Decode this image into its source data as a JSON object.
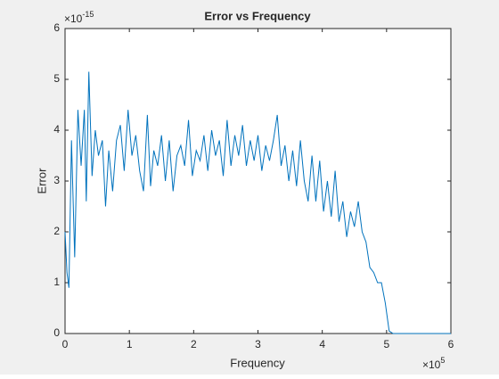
{
  "chart_data": {
    "type": "line",
    "title": "Error vs Frequency",
    "xlabel": "Frequency",
    "ylabel": "Error",
    "x_multiplier": {
      "base": "×10",
      "exponent": "5"
    },
    "y_multiplier": {
      "base": "×10",
      "exponent": "-15"
    },
    "x": [
      0,
      0.03,
      0.06,
      0.1,
      0.15,
      0.2,
      0.25,
      0.3,
      0.33,
      0.37,
      0.42,
      0.47,
      0.52,
      0.58,
      0.63,
      0.68,
      0.74,
      0.8,
      0.86,
      0.92,
      0.98,
      1.04,
      1.1,
      1.16,
      1.22,
      1.28,
      1.33,
      1.38,
      1.44,
      1.5,
      1.56,
      1.62,
      1.68,
      1.74,
      1.8,
      1.86,
      1.92,
      1.98,
      2.04,
      2.1,
      2.16,
      2.22,
      2.28,
      2.34,
      2.4,
      2.46,
      2.52,
      2.58,
      2.64,
      2.7,
      2.76,
      2.82,
      2.88,
      2.94,
      3.0,
      3.06,
      3.12,
      3.18,
      3.24,
      3.3,
      3.36,
      3.42,
      3.48,
      3.54,
      3.6,
      3.66,
      3.72,
      3.78,
      3.84,
      3.9,
      3.96,
      4.02,
      4.08,
      4.14,
      4.2,
      4.26,
      4.32,
      4.38,
      4.44,
      4.5,
      4.56,
      4.62,
      4.68,
      4.74,
      4.8,
      4.86,
      4.92,
      4.98,
      5.04,
      5.1,
      5.4,
      6.0
    ],
    "series": [
      {
        "name": "Error",
        "color": "#0072bd",
        "values": [
          2.0,
          1.2,
          0.9,
          3.8,
          1.5,
          4.4,
          3.3,
          4.4,
          2.6,
          5.15,
          3.1,
          4.0,
          3.5,
          3.8,
          2.5,
          3.6,
          2.8,
          3.8,
          4.1,
          3.2,
          4.4,
          3.5,
          3.9,
          3.2,
          2.8,
          4.3,
          2.9,
          3.6,
          3.3,
          3.9,
          3.0,
          3.8,
          2.8,
          3.5,
          3.7,
          3.3,
          4.2,
          3.1,
          3.6,
          3.4,
          3.9,
          3.2,
          4.0,
          3.5,
          3.8,
          3.1,
          4.2,
          3.3,
          3.9,
          3.5,
          4.1,
          3.3,
          3.8,
          3.4,
          3.9,
          3.2,
          3.7,
          3.4,
          3.8,
          4.3,
          3.3,
          3.7,
          3.0,
          3.6,
          2.9,
          3.8,
          3.0,
          2.6,
          3.5,
          2.6,
          3.4,
          2.4,
          3.0,
          2.3,
          3.2,
          2.2,
          2.6,
          1.9,
          2.4,
          2.1,
          2.6,
          2.0,
          1.8,
          1.3,
          1.2,
          1.0,
          1.0,
          0.6,
          0.05,
          0,
          0,
          0
        ]
      }
    ],
    "xlim": [
      0,
      6
    ],
    "xticks": [
      0,
      1,
      2,
      3,
      4,
      5,
      6
    ],
    "ylim": [
      0,
      6
    ],
    "yticks": [
      0,
      1,
      2,
      3,
      4,
      5,
      6
    ],
    "grid": false
  }
}
